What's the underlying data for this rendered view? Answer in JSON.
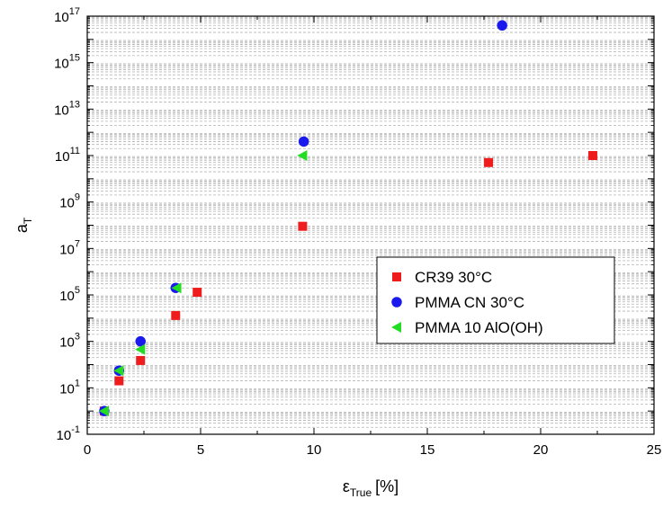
{
  "chart_data": {
    "type": "scatter",
    "title": "",
    "xlabel": "ε_True [%]",
    "xlabel_symbol": "ε",
    "xlabel_subscript": "True",
    "xlabel_unit": "[%]",
    "ylabel": "a_T",
    "ylabel_symbol": "a",
    "ylabel_subscript": "T",
    "x_scale": "linear",
    "y_scale": "log",
    "xlim": [
      0,
      25
    ],
    "ylim": [
      0.1,
      1e+17
    ],
    "x_ticks": [
      0,
      5,
      10,
      15,
      20,
      25
    ],
    "y_ticks_exponents": [
      -1,
      1,
      3,
      5,
      7,
      9,
      11,
      13,
      15,
      17
    ],
    "y_tick_base": "10",
    "grid": true,
    "grid_style": "dashed gray at minor log decades",
    "legend_position": "center-right",
    "series": [
      {
        "name": "CR39 30°C",
        "marker": "square",
        "color": "#ee1c1c",
        "points": [
          {
            "x": 0.75,
            "y": 1
          },
          {
            "x": 1.4,
            "y": 20
          },
          {
            "x": 2.35,
            "y": 150
          },
          {
            "x": 3.9,
            "y": 13000
          },
          {
            "x": 4.85,
            "y": 130000
          },
          {
            "x": 9.5,
            "y": 90000000
          },
          {
            "x": 17.7,
            "y": 50000000000
          },
          {
            "x": 22.3,
            "y": 100000000000
          }
        ]
      },
      {
        "name": "PMMA CN 30°C",
        "marker": "circle",
        "color": "#1a1aee",
        "points": [
          {
            "x": 0.75,
            "y": 1
          },
          {
            "x": 1.4,
            "y": 55
          },
          {
            "x": 2.35,
            "y": 1000
          },
          {
            "x": 3.9,
            "y": 200000
          },
          {
            "x": 9.55,
            "y": 400000000000
          },
          {
            "x": 18.3,
            "y": 40000000000000000
          }
        ]
      },
      {
        "name": "PMMA 10 AlO(OH)",
        "marker": "triangle-left",
        "color": "#22dd22",
        "points": [
          {
            "x": 0.75,
            "y": 1
          },
          {
            "x": 1.4,
            "y": 55
          },
          {
            "x": 2.35,
            "y": 450
          },
          {
            "x": 3.95,
            "y": 200000
          },
          {
            "x": 9.5,
            "y": 100000000000
          }
        ]
      }
    ]
  }
}
